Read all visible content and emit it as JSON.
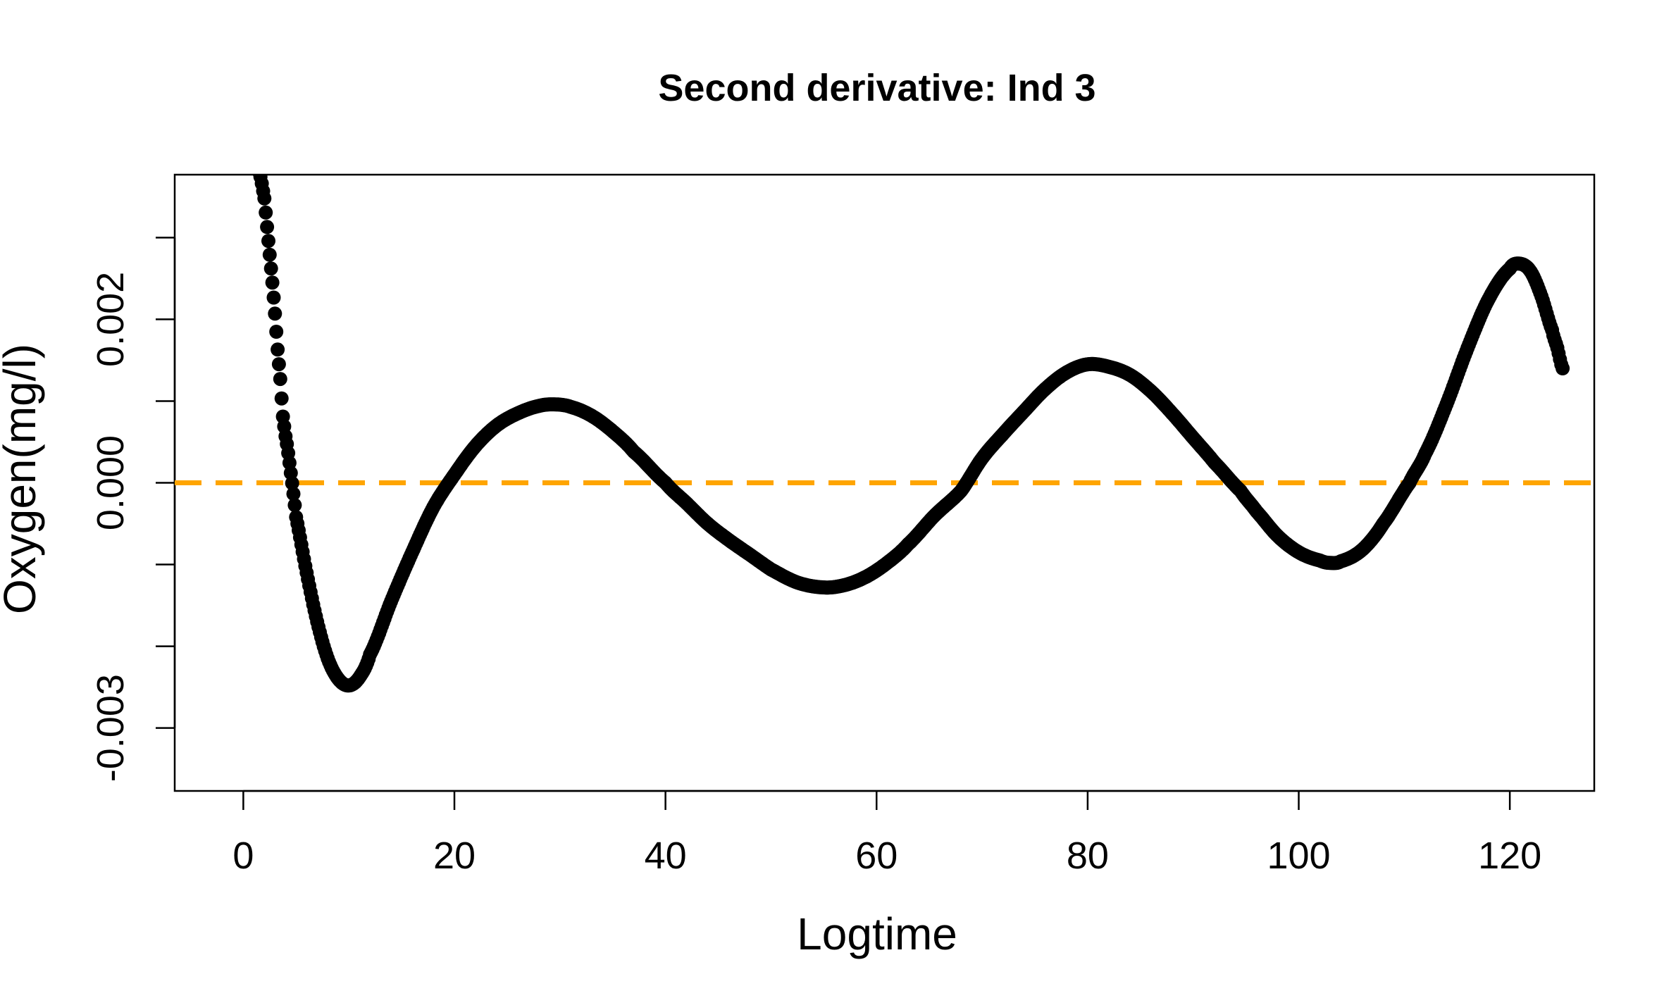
{
  "chart_data": {
    "type": "scatter",
    "title": "Second derivative: Ind 3",
    "xlabel": "Logtime",
    "ylabel": "Oxygen(mg/l)",
    "xlim": [
      -6.5,
      128
    ],
    "ylim": [
      -0.00377,
      0.00377
    ],
    "x_ticks": [
      0,
      20,
      40,
      60,
      80,
      100,
      120
    ],
    "x_tick_labels": [
      "0",
      "20",
      "40",
      "60",
      "80",
      "100",
      "120"
    ],
    "y_ticks": [
      -0.003,
      -0.002,
      -0.001,
      0.0,
      0.001,
      0.002,
      0.003
    ],
    "y_tick_labels": [
      "-0.003",
      "",
      "",
      "0.000",
      "",
      "0.002",
      ""
    ],
    "grid": false,
    "point_color": "#000000",
    "reference_line": {
      "y": 0,
      "color": "#FFA500",
      "style": "dashed"
    },
    "series": [
      {
        "x": [
          1.5,
          2.0,
          2.25,
          2.5,
          2.75,
          3.0,
          3.25,
          3.5,
          3.75,
          4.0,
          4.5,
          5,
          6,
          7,
          8,
          9,
          10,
          11,
          12,
          14,
          16,
          18,
          20,
          22,
          24,
          26,
          28,
          29.5,
          31,
          33,
          35,
          37,
          40,
          42,
          44,
          46,
          48,
          50,
          52.5,
          55,
          57,
          59,
          61,
          63,
          65.5,
          68,
          70,
          72,
          74,
          76,
          78,
          80,
          82,
          84,
          86,
          88,
          90,
          92,
          94.5,
          96,
          98,
          100,
          102,
          103,
          104,
          106,
          108,
          110.5,
          112,
          114,
          116,
          118,
          120,
          121,
          122,
          123,
          124,
          124.5,
          125
        ],
        "y": [
          0.0038,
          0.00348,
          0.00313,
          0.00279,
          0.00245,
          0.00207,
          0.00163,
          0.00127,
          0.00081,
          0.00057,
          0.00012,
          -0.00042,
          -0.0011,
          -0.0017,
          -0.00215,
          -0.0024,
          -0.00248,
          -0.00238,
          -0.0021,
          -0.00145,
          -0.00085,
          -0.0003,
          0.0001,
          0.00045,
          0.0007,
          0.00085,
          0.00094,
          0.00096,
          0.00093,
          0.00082,
          0.00063,
          0.00038,
          0.0,
          -0.00025,
          -0.0005,
          -0.0007,
          -0.00088,
          -0.00106,
          -0.00122,
          -0.00128,
          -0.00125,
          -0.00115,
          -0.00098,
          -0.00075,
          -0.0004,
          -0.0001,
          0.0003,
          0.0006,
          0.00088,
          0.00115,
          0.00135,
          0.00145,
          0.00142,
          0.00132,
          0.00112,
          0.00085,
          0.00055,
          0.00025,
          -0.0001,
          -0.00035,
          -0.00065,
          -0.00085,
          -0.00095,
          -0.00098,
          -0.00096,
          -0.00082,
          -0.0005,
          0.0,
          0.00036,
          0.00096,
          0.00165,
          0.00225,
          0.00262,
          0.00268,
          0.00258,
          0.00228,
          0.00187,
          0.00165,
          0.0014
        ]
      }
    ]
  }
}
